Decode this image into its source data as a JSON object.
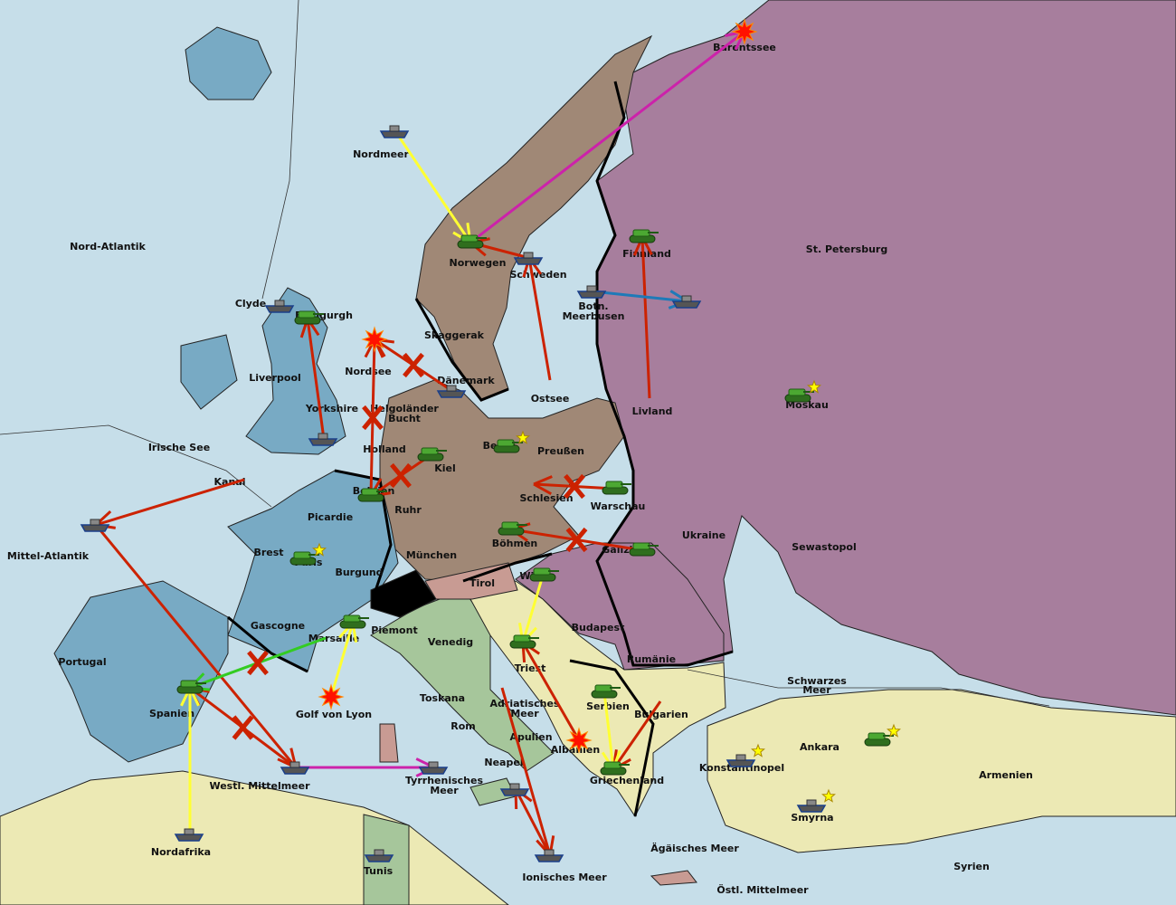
{
  "colors": {
    "sea": "#c6dee9",
    "russia": "#a77e9d",
    "germany": "#a08876",
    "england_france": "#78aac4",
    "italy": "#a6c69b",
    "austria": "#ece9b4",
    "turkey": "#ece9b4",
    "neutral": "#ece9b4",
    "tirol": "#c89b93",
    "switzerland": "#000000",
    "move": "#cc2200",
    "support": "#ffff33",
    "convoy": "#cc22aa",
    "support_hold": "#33cc22",
    "fleet_move_blue": "#1e7ab8"
  },
  "provinces": [
    "Barentssee",
    "Nordmeer",
    "Nord-Atlantik",
    "Norwegen",
    "Schweden",
    "Finnland",
    "St. Petersburg",
    "Clyde",
    "Edingurgh",
    "Botn.",
    "Meerbusen",
    "Skaggerak",
    "Liverpool",
    "Nordsee",
    "Dänemark",
    "Ostsee",
    "Yorkshire",
    "Helgoländer",
    "Bucht",
    "Livland",
    "Moskau",
    "Irische See",
    "Holland",
    "Berlin",
    "Preußen",
    "Kiel",
    "Kanal",
    "Belgien",
    "Schlesien",
    "Warschau",
    "Ruhr",
    "Picardie",
    "Ukraine",
    "Böhmen",
    "Galizien",
    "Sewastopol",
    "Mittel-Atlantik",
    "Brest",
    "Paris",
    "Burgund",
    "München",
    "Tirol",
    "Wien",
    "Gascogne",
    "Piemont",
    "Budapest",
    "Marsaille",
    "Venedig",
    "Portugal",
    "Rumänie",
    "Triest",
    "Schwarzes",
    "Meer",
    "Spanien",
    "Toskana",
    "Golf von Lyon",
    "Serbien",
    "Adriatisches",
    "Meer",
    "Bulgarien",
    "Rom",
    "Apulien",
    "Albanien",
    "Ankara",
    "Neapel",
    "Konstantinopel",
    "Armenien",
    "Westl. Mittelmeer",
    "Griechenland",
    "Tyrrhenisches",
    "Meer",
    "Smyrna",
    "Nordafrika",
    "Ägäisches Meer",
    "Syrien",
    "Tunis",
    "Ionisches Meer",
    "Östl. Mittelmeer"
  ],
  "units": [
    {
      "type": "army",
      "province": "Finnland"
    },
    {
      "type": "army",
      "province": "Norwegen"
    },
    {
      "type": "army",
      "province": "Moskau",
      "star": true
    },
    {
      "type": "army",
      "province": "Kiel"
    },
    {
      "type": "army",
      "province": "Berlin",
      "star": true
    },
    {
      "type": "army",
      "province": "Warschau"
    },
    {
      "type": "army",
      "province": "Belgien"
    },
    {
      "type": "army",
      "province": "Böhmen"
    },
    {
      "type": "army",
      "province": "Galizien"
    },
    {
      "type": "army",
      "province": "Paris",
      "star": true
    },
    {
      "type": "army",
      "province": "Wien"
    },
    {
      "type": "army",
      "province": "Piemont"
    },
    {
      "type": "army",
      "province": "Triest"
    },
    {
      "type": "army",
      "province": "Spanien"
    },
    {
      "type": "army",
      "province": "Serbien"
    },
    {
      "type": "army",
      "province": "Griechenland"
    },
    {
      "type": "army",
      "province": "Ankara",
      "star": true
    },
    {
      "type": "army",
      "province": "Edingurgh"
    },
    {
      "type": "fleet",
      "province": "Nordmeer"
    },
    {
      "type": "fleet",
      "province": "Schweden"
    },
    {
      "type": "fleet",
      "province": "Botn. Meerbusen"
    },
    {
      "type": "fleet",
      "province": "St. Petersburg"
    },
    {
      "type": "fleet",
      "province": "Clyde"
    },
    {
      "type": "fleet",
      "province": "Dänemark"
    },
    {
      "type": "fleet",
      "province": "Yorkshire"
    },
    {
      "type": "fleet",
      "province": "Mittel-Atlantik"
    },
    {
      "type": "fleet",
      "province": "Westl. Mittelmeer"
    },
    {
      "type": "fleet",
      "province": "Tyrrhenisches Meer"
    },
    {
      "type": "fleet",
      "province": "Neapel"
    },
    {
      "type": "fleet",
      "province": "Ionisches Meer"
    },
    {
      "type": "fleet",
      "province": "Konstantinopel",
      "star": true
    },
    {
      "type": "fleet",
      "province": "Smyrna",
      "star": true
    },
    {
      "type": "fleet",
      "province": "Nordafrika"
    },
    {
      "type": "fleet",
      "province": "Tunis"
    }
  ],
  "battles": [
    "Barentssee",
    "Nordsee",
    "Golf von Lyon",
    "Albanien"
  ],
  "orders": [
    {
      "from": "Norwegen",
      "to": "Barentssee",
      "kind": "convoy"
    },
    {
      "from": "Nordmeer",
      "to": "Norwegen",
      "kind": "support"
    },
    {
      "from": "Schweden",
      "to": "Norwegen",
      "kind": "move"
    },
    {
      "from": "Ostsee",
      "to": "Schweden",
      "kind": "move"
    },
    {
      "from": "Livland",
      "to": "Finnland",
      "kind": "move"
    },
    {
      "from": "Botn. Meerbusen",
      "to": "St. Petersburg",
      "kind": "fleet"
    },
    {
      "from": "Kanal",
      "to": "Mittel-Atlantik",
      "kind": "move"
    },
    {
      "from": "Mittel-Atlantik",
      "to": "Westl. Mittelmeer",
      "kind": "move"
    },
    {
      "from": "Westl. Mittelmeer",
      "to": "Tyrrhenisches Meer",
      "kind": "convoy"
    },
    {
      "from": "Westl. Mittelmeer",
      "to": "Spanien",
      "kind": "move",
      "failed": true
    },
    {
      "from": "Nordafrika",
      "to": "Spanien",
      "kind": "support"
    },
    {
      "from": "Marsaille",
      "to": "Spanien",
      "kind": "support_hold",
      "failed": true
    },
    {
      "from": "Golf von Lyon",
      "to": "Piemont",
      "kind": "support"
    },
    {
      "from": "Yorkshire",
      "to": "Edingurgh",
      "kind": "move"
    },
    {
      "from": "Belgien",
      "to": "Nordsee",
      "kind": "move",
      "failed": true
    },
    {
      "from": "Dänemark",
      "to": "Nordsee",
      "kind": "move",
      "failed": true
    },
    {
      "from": "Kiel",
      "to": "Belgien",
      "kind": "move",
      "failed": true
    },
    {
      "from": "Warschau",
      "to": "Schlesien",
      "kind": "move",
      "failed": true
    },
    {
      "from": "Galizien",
      "to": "Böhmen",
      "kind": "move",
      "failed": true
    },
    {
      "from": "Albanien",
      "to": "Triest",
      "kind": "move"
    },
    {
      "from": "Bulgarien",
      "to": "Griechenland",
      "kind": "move"
    },
    {
      "from": "Serbien",
      "to": "Griechenland",
      "kind": "support"
    },
    {
      "from": "Adriatisches Meer",
      "to": "Ionisches Meer",
      "kind": "move"
    },
    {
      "from": "Ionisches Meer",
      "to": "Neapel",
      "kind": "move"
    },
    {
      "from": "Wien",
      "to": "Triest",
      "kind": "support"
    }
  ]
}
